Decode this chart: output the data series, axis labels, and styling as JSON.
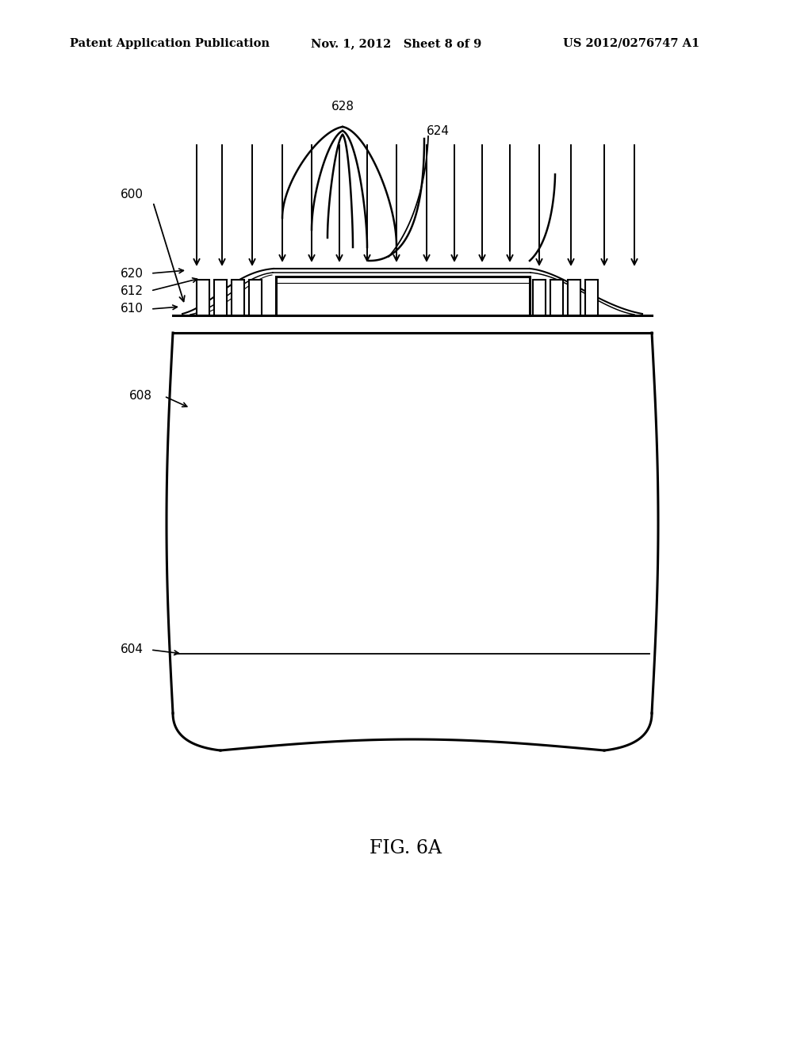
{
  "background_color": "#ffffff",
  "header_left": "Patent Application Publication",
  "header_mid": "Nov. 1, 2012   Sheet 8 of 9",
  "header_right": "US 2012/0276747 A1",
  "figure_label": "FIG. 6A",
  "lc": "#000000",
  "lw": 2.2
}
